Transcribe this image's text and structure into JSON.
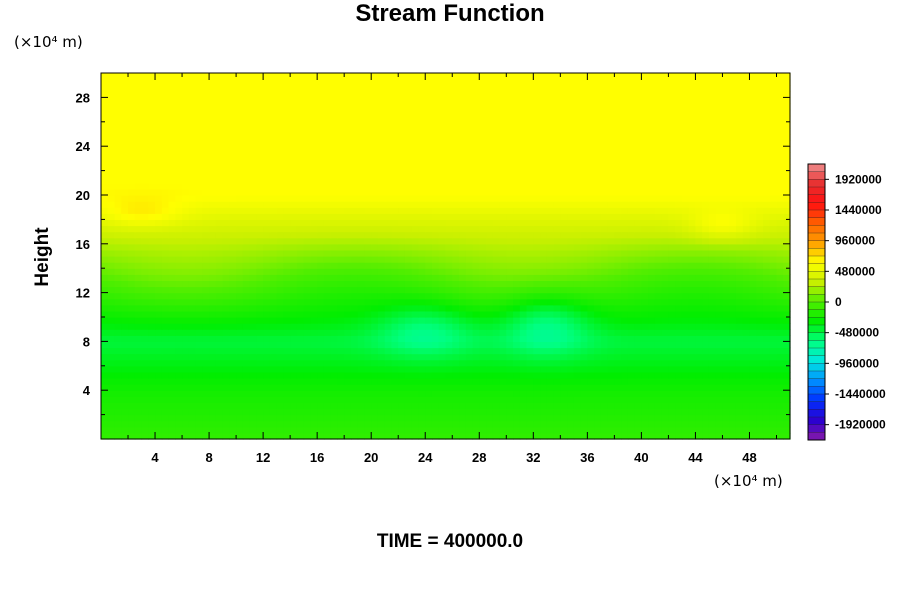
{
  "chart_data": {
    "type": "heatmap",
    "title": "Stream Function",
    "xlabel": "",
    "ylabel": "Height",
    "x_unit": "(×10⁴ m)",
    "y_unit": "(×10⁴ m)",
    "xlim": [
      0,
      51
    ],
    "ylim": [
      0,
      30
    ],
    "x_ticks": [
      4,
      8,
      12,
      16,
      20,
      24,
      28,
      32,
      36,
      40,
      44,
      48
    ],
    "y_ticks": [
      4,
      8,
      12,
      16,
      20,
      24,
      28
    ],
    "colorbar": {
      "min": -2160000,
      "max": 2160000,
      "step": 120000,
      "labels": [
        1920000,
        1440000,
        960000,
        480000,
        0,
        -480000,
        -960000,
        -1440000,
        -1920000
      ]
    },
    "field_description": {
      "height_bands": [
        {
          "y": 0,
          "value": -120000
        },
        {
          "y": 4,
          "value": -240000
        },
        {
          "y": 8,
          "value": -450000
        },
        {
          "y": 12,
          "value": -100000
        },
        {
          "y": 16,
          "value": 250000
        },
        {
          "y": 20,
          "value": 620000
        },
        {
          "y": 30,
          "value": 620000
        }
      ]
    },
    "annotation": "TIME = 400000.0"
  },
  "colors": {
    "colorbar_stops": [
      "#8a1aa8",
      "#2a00d0",
      "#0030ff",
      "#0090ff",
      "#00e8e0",
      "#00ff80",
      "#00ee00",
      "#50ee00",
      "#c8f000",
      "#ffff00",
      "#ffa000",
      "#ff6000",
      "#ff1010",
      "#e83030",
      "#f09090"
    ]
  }
}
